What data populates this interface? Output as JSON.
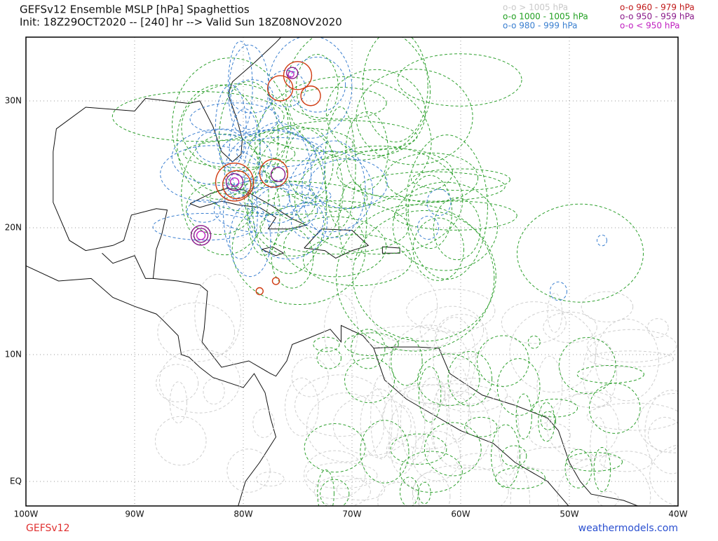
{
  "header": {
    "title": "GEFSv12 Ensemble MSLP [hPa] Spaghettios",
    "subtitle": "Init: 18Z29OCT2020 -- [240] hr --> Valid Sun 18Z08NOV2020"
  },
  "legend": [
    {
      "label": "o-o > 1005 hPa",
      "color": "#c8c8c8"
    },
    {
      "label": "o-o 1000 - 1005 hPa",
      "color": "#22a022"
    },
    {
      "label": "o-o 980 - 999 hPa",
      "color": "#3a7fd0"
    },
    {
      "label": "o-o 960 - 979 hPa",
      "color": "#c01818"
    },
    {
      "label": "o-o 950 - 959 hPa",
      "color": "#8a1a8a"
    },
    {
      "label": "o-o < 950 hPa",
      "color": "#c020c0"
    }
  ],
  "map": {
    "lon_labels": [
      "100W",
      "90W",
      "80W",
      "70W",
      "60W",
      "50W",
      "40W"
    ],
    "lat_labels": [
      "30N",
      "20N",
      "10N",
      "EQ"
    ]
  },
  "footer": {
    "model": "GEFSv12",
    "site": "weathermodels.com"
  }
}
